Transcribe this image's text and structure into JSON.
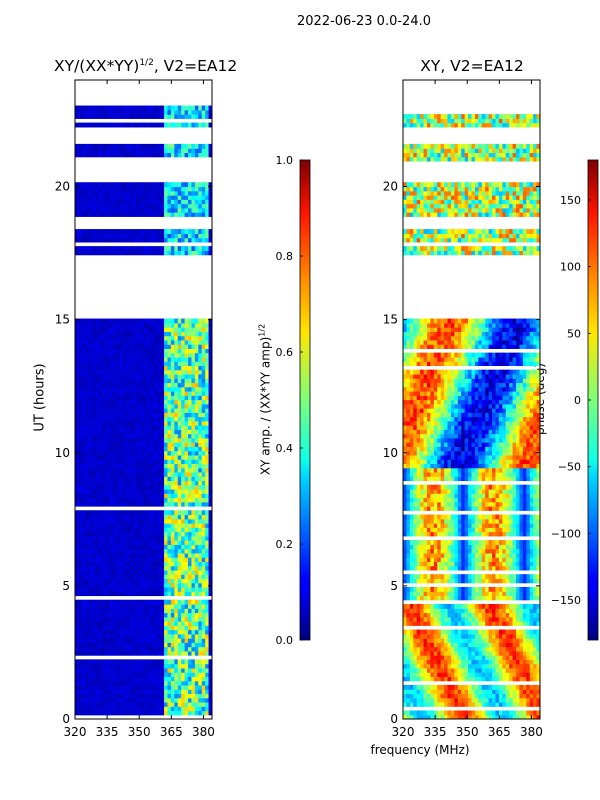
{
  "figure": {
    "suptitle": "2022-06-23 0.0-24.0",
    "shared_xlabel": "frequency (MHz)"
  },
  "chart_data": [
    {
      "type": "heatmap",
      "title": "XY/(XX*YY)",
      "title_exponent": "1/2",
      "title_suffix": ", V2=EA12",
      "xlabel": "",
      "ylabel": "UT (hours)",
      "xlim": [
        320,
        384
      ],
      "ylim": [
        0,
        24
      ],
      "xticks": [
        "320",
        "335",
        "350",
        "365",
        "380"
      ],
      "yticks": [
        "0",
        "5",
        "10",
        "15",
        "20"
      ],
      "colorbar": {
        "label": "XY amp. / (XX*YY amp)",
        "label_exponent": "1/2",
        "range": [
          0.0,
          1.0
        ],
        "ticks": [
          "0.0",
          "0.2",
          "0.4",
          "0.6",
          "0.8",
          "1.0"
        ],
        "colormap": "jet"
      },
      "typical_values": {
        "background": 0.05,
        "band_361_382_MHz": 0.45,
        "peak": 0.7
      },
      "data_gaps_hours": [
        [
          15.0,
          17.5
        ],
        [
          17.8,
          18.0
        ],
        [
          18.4,
          18.8
        ],
        [
          20.2,
          21.0
        ],
        [
          21.6,
          22.2
        ],
        [
          23.0,
          24.0
        ]
      ]
    },
    {
      "type": "heatmap",
      "title": "XY, V2=EA12",
      "xlabel": "",
      "ylabel": "",
      "xlim": [
        320,
        384
      ],
      "ylim": [
        0,
        24
      ],
      "xticks": [
        "320",
        "335",
        "350",
        "365",
        "380"
      ],
      "yticks": [
        "0",
        "5",
        "10",
        "15",
        "20"
      ],
      "colorbar": {
        "label": "phase (deg)",
        "range": [
          -180,
          180
        ],
        "ticks": [
          "150",
          "100",
          "50",
          "0",
          "−50",
          "−100",
          "−150"
        ],
        "colormap": "jet"
      },
      "data_gaps_hours": [
        [
          15.0,
          17.5
        ],
        [
          17.8,
          18.0
        ],
        [
          18.4,
          18.8
        ],
        [
          20.2,
          21.0
        ],
        [
          21.6,
          22.2
        ],
        [
          23.0,
          24.0
        ]
      ]
    }
  ]
}
